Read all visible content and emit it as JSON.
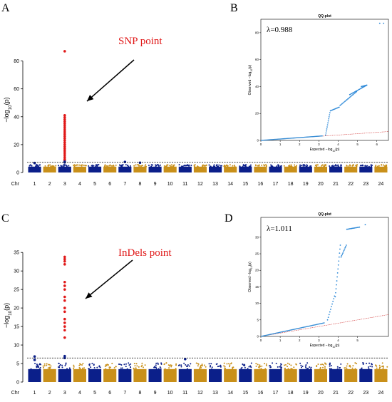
{
  "colors": {
    "blue": "#0b1f8a",
    "gold": "#c9901a",
    "red": "#e01818",
    "qq_line": "#3a8fd6",
    "qq_point": "#2f8ad8",
    "qq_ref": "#d23a3a"
  },
  "chart_data": [
    {
      "id": "A",
      "type": "scatter",
      "label": "A",
      "ylabel_parts": [
        "−log",
        "10",
        "(p)"
      ],
      "xlabel": "Chr",
      "chromosomes": [
        "1",
        "2",
        "3",
        "4",
        "5",
        "6",
        "7",
        "8",
        "9",
        "10",
        "11",
        "12",
        "13",
        "14",
        "15",
        "16",
        "17",
        "18",
        "19",
        "20",
        "21",
        "22",
        "23",
        "24"
      ],
      "ylim": [
        0,
        90
      ],
      "yticks": [
        "0",
        "20",
        "40",
        "60",
        "80"
      ],
      "ytick_values": [
        0,
        20,
        40,
        60,
        80
      ],
      "threshold": 7.3,
      "annotation": "SNP point",
      "series": [
        {
          "chromosome": "3",
          "values": [
            87,
            41,
            39.5,
            38,
            36.5,
            35,
            33.5,
            32,
            30.5,
            29,
            27.5,
            26,
            24.5,
            23,
            21.5,
            20,
            18.5,
            17,
            15.5,
            14,
            12.5,
            11,
            9.5,
            8.5
          ]
        },
        {
          "chromosome": "3",
          "values": [
            7.8,
            7.2
          ]
        },
        {
          "chromosome": "7",
          "values": [
            7.6
          ]
        },
        {
          "chromosome": "8",
          "values": [
            7.0
          ]
        },
        {
          "chromosome": "1",
          "values": [
            6.8
          ]
        }
      ],
      "qq": {
        "title": "QQ-plot",
        "label": "B",
        "lambda": "λ=0.988",
        "xlabel_parts": [
          "Expected  −log",
          "10",
          "(p)"
        ],
        "ylabel_parts": [
          "Observed  −log",
          "10",
          "(p)"
        ],
        "xticks": [
          "0",
          "1",
          "2",
          "3",
          "4",
          "5",
          "6"
        ],
        "xtick_values": [
          0,
          1,
          2,
          3,
          4,
          5,
          6
        ],
        "yticks": [
          "0",
          "20",
          "40",
          "60",
          "80"
        ],
        "ytick_values": [
          0,
          20,
          40,
          60,
          80
        ],
        "xlim": [
          0,
          6.6
        ],
        "ylim": [
          0,
          90
        ]
      }
    },
    {
      "id": "C",
      "type": "scatter",
      "label": "C",
      "ylabel_parts": [
        "−log",
        "10",
        "(p)"
      ],
      "xlabel": "Chr",
      "chromosomes": [
        "1",
        "2",
        "3",
        "4",
        "5",
        "6",
        "7",
        "8",
        "9",
        "10",
        "11",
        "12",
        "13",
        "14",
        "15",
        "16",
        "17",
        "18",
        "19",
        "20",
        "21",
        "22",
        "23",
        "24"
      ],
      "ylim": [
        0,
        36
      ],
      "yticks": [
        "0",
        "5",
        "10",
        "15",
        "20",
        "25",
        "30",
        "35"
      ],
      "ytick_values": [
        0,
        5,
        10,
        15,
        20,
        25,
        30,
        35
      ],
      "threshold": 6.5,
      "annotation": "InDels point",
      "series": [
        {
          "chromosome": "3",
          "values": [
            33.8,
            33.2,
            32.6,
            31.8,
            27,
            26,
            25,
            23,
            22,
            20,
            19,
            17,
            16,
            15,
            14,
            12
          ]
        },
        {
          "chromosome": "3",
          "values": [
            7.0,
            6.5
          ]
        },
        {
          "chromosome": "1",
          "values": [
            6.9,
            6.0
          ]
        },
        {
          "chromosome": "11",
          "values": [
            6.2
          ]
        }
      ],
      "qq": {
        "title": "QQ-plot",
        "label": "D",
        "lambda": "λ=1.011",
        "xlabel_parts": [
          "Expected  −log",
          "10",
          "(p)"
        ],
        "ylabel_parts": [
          "Observed  −log",
          "10",
          "(p)"
        ],
        "xticks": [
          "0",
          "1",
          "2",
          "3",
          "4",
          "5"
        ],
        "xtick_values": [
          0,
          1,
          2,
          3,
          4,
          5
        ],
        "yticks": [
          "0",
          "5",
          "10",
          "15",
          "20",
          "25",
          "30"
        ],
        "ytick_values": [
          0,
          5,
          10,
          15,
          20,
          25,
          30
        ],
        "xlim": [
          0,
          6.6
        ],
        "ylim": [
          0,
          36
        ]
      }
    }
  ]
}
